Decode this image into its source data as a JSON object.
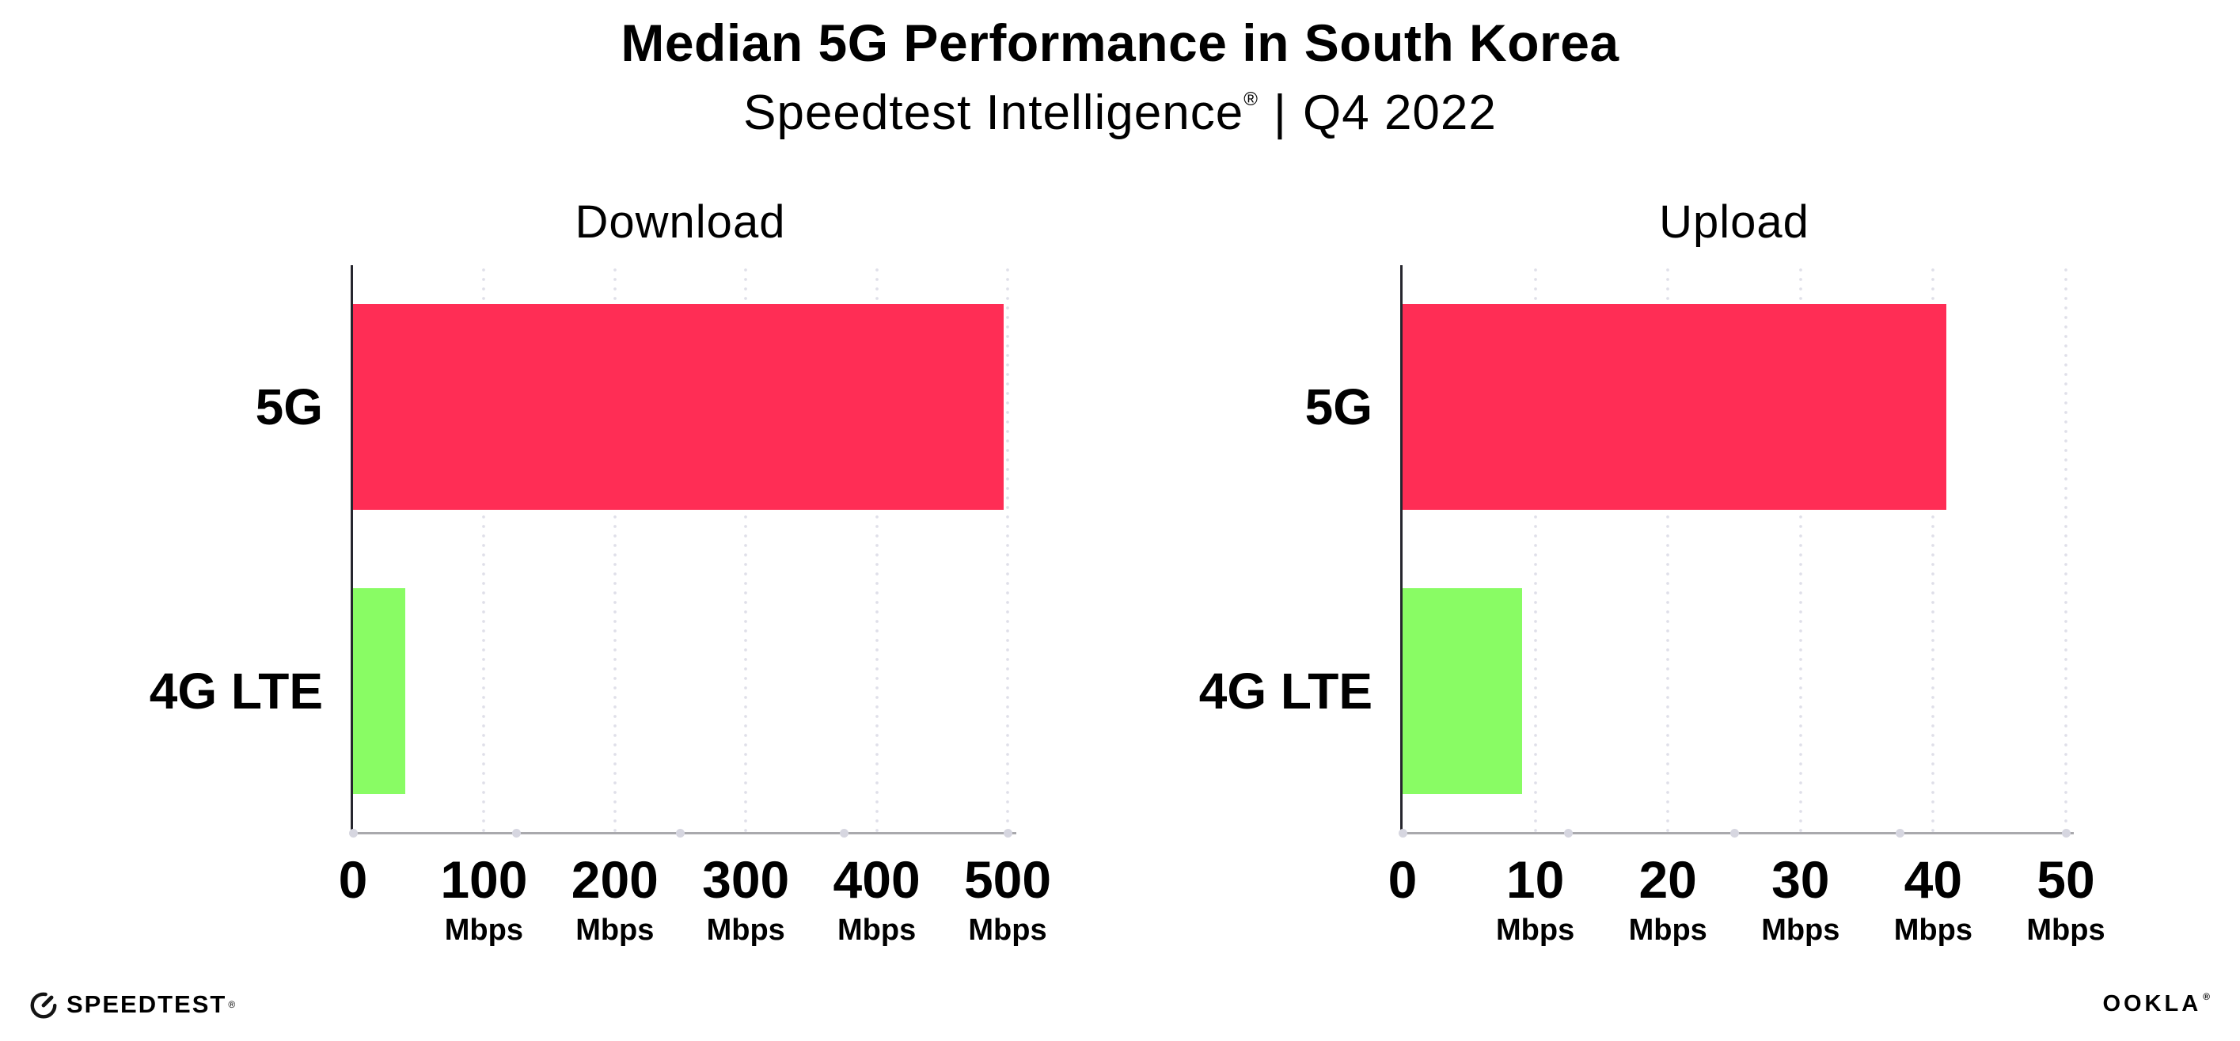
{
  "header": {
    "title": "Median 5G Performance in South Korea",
    "subtitle_brand": "Speedtest Intelligence",
    "subtitle_trademark": "®",
    "subtitle_separator": "|",
    "subtitle_period": "Q4 2022"
  },
  "chart_data": [
    {
      "type": "bar",
      "orientation": "horizontal",
      "title": "Download",
      "categories": [
        "5G",
        "4G LTE"
      ],
      "values": [
        497,
        40
      ],
      "x_axis_unit": "Mbps",
      "xlim": [
        0,
        500
      ],
      "xticks": [
        0,
        100,
        200,
        300,
        400,
        500
      ],
      "bar_colors": [
        "#ff2d55",
        "#89fc64"
      ],
      "grid": "dotted vertical gridlines at each tick",
      "legend": "none",
      "data_labels": "none"
    },
    {
      "type": "bar",
      "orientation": "horizontal",
      "title": "Upload",
      "categories": [
        "5G",
        "4G LTE"
      ],
      "values": [
        41,
        9
      ],
      "x_axis_unit": "Mbps",
      "xlim": [
        0,
        50
      ],
      "xticks": [
        0,
        10,
        20,
        30,
        40,
        50
      ],
      "bar_colors": [
        "#ff2d55",
        "#89fc64"
      ],
      "grid": "dotted vertical gridlines at each tick",
      "legend": "none",
      "data_labels": "none"
    }
  ],
  "footer": {
    "speedtest_logo_text": "SPEEDTEST",
    "speedtest_trademark": "®",
    "ookla_logo_text": "OOKLA",
    "ookla_trademark": "®"
  },
  "colors": {
    "bar_5g": "#ff2d55",
    "bar_4g_lte": "#89fc64",
    "x_axis_line": "#a9a9ad",
    "y_axis_spine": "#26262e",
    "gridline_dots": "#dfdfe9",
    "axis_tick_dots": "#d6d6e0",
    "text": "#000000",
    "background": "#ffffff"
  }
}
